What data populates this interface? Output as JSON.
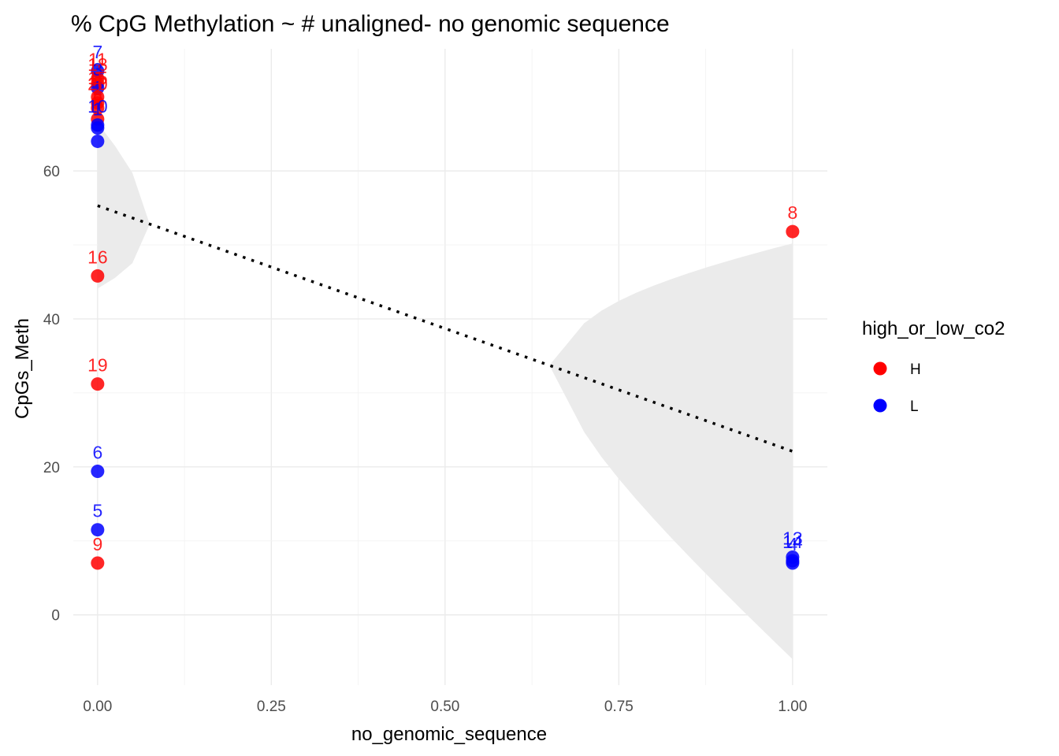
{
  "chart_data": {
    "type": "scatter",
    "title": "% CpG Methylation ~ # unaligned- no genomic sequence",
    "xlabel": "no_genomic_sequence",
    "ylabel": "CpGs_Meth",
    "xlim": [
      -0.035,
      1.05
    ],
    "ylim": [
      -9.5,
      76.5
    ],
    "x_ticks": [
      0,
      0.25,
      0.5,
      0.75,
      1
    ],
    "x_tick_labels": [
      "0.00",
      "0.25",
      "0.50",
      "0.75",
      "1.00"
    ],
    "y_ticks": [
      0,
      20,
      40,
      60
    ],
    "y_tick_labels": [
      "0",
      "20",
      "40",
      "60"
    ],
    "grid": true,
    "legend": {
      "title": "high_or_low_co2",
      "placement": "right",
      "entries": [
        {
          "key": "H",
          "label": "H",
          "color": "#ff0000"
        },
        {
          "key": "L",
          "label": "L",
          "color": "#0000ff"
        }
      ]
    },
    "colors": {
      "H": "#ff0000",
      "L": "#0000ff"
    },
    "points": [
      {
        "x": 0,
        "y": 73.5,
        "group": "L",
        "label": "7"
      },
      {
        "x": 0,
        "y": 72.5,
        "group": "H",
        "label": "11"
      },
      {
        "x": 0,
        "y": 71.8,
        "group": "H",
        "label": "18"
      },
      {
        "x": 0,
        "y": 71.2,
        "group": "L",
        "label": "3"
      },
      {
        "x": 0,
        "y": 70.0,
        "group": "H",
        "label": "15"
      },
      {
        "x": 0,
        "y": 69.2,
        "group": "H",
        "label": "20"
      },
      {
        "x": 0,
        "y": 68.5,
        "group": "H",
        "label": "2"
      },
      {
        "x": 0,
        "y": 67.0,
        "group": "H",
        "label": "8"
      },
      {
        "x": 0,
        "y": 66.2,
        "group": "L",
        "label": "10"
      },
      {
        "x": 0,
        "y": 65.8,
        "group": "L",
        "label": "1"
      },
      {
        "x": 0,
        "y": 64.0,
        "group": "L",
        "label": ""
      },
      {
        "x": 0,
        "y": 45.8,
        "group": "H",
        "label": "16"
      },
      {
        "x": 0,
        "y": 31.2,
        "group": "H",
        "label": "19"
      },
      {
        "x": 0,
        "y": 19.4,
        "group": "L",
        "label": "6"
      },
      {
        "x": 0,
        "y": 11.5,
        "group": "L",
        "label": "5"
      },
      {
        "x": 0,
        "y": 7.0,
        "group": "H",
        "label": "9"
      },
      {
        "x": 1,
        "y": 51.8,
        "group": "H",
        "label": "8"
      },
      {
        "x": 1,
        "y": 7.8,
        "group": "L",
        "label": "13"
      },
      {
        "x": 1,
        "y": 7.3,
        "group": "L",
        "label": "14"
      },
      {
        "x": 1,
        "y": 7.0,
        "group": "L",
        "label": "4"
      }
    ],
    "regression": {
      "x": [
        0,
        1
      ],
      "fit": [
        55.3,
        22.1
      ],
      "lower": [
        43.2,
        -5.8
      ],
      "upper": [
        66.5,
        50.2
      ],
      "band_color": "#ebebeb",
      "line_color": "#000000",
      "line_style": "dotted"
    }
  }
}
